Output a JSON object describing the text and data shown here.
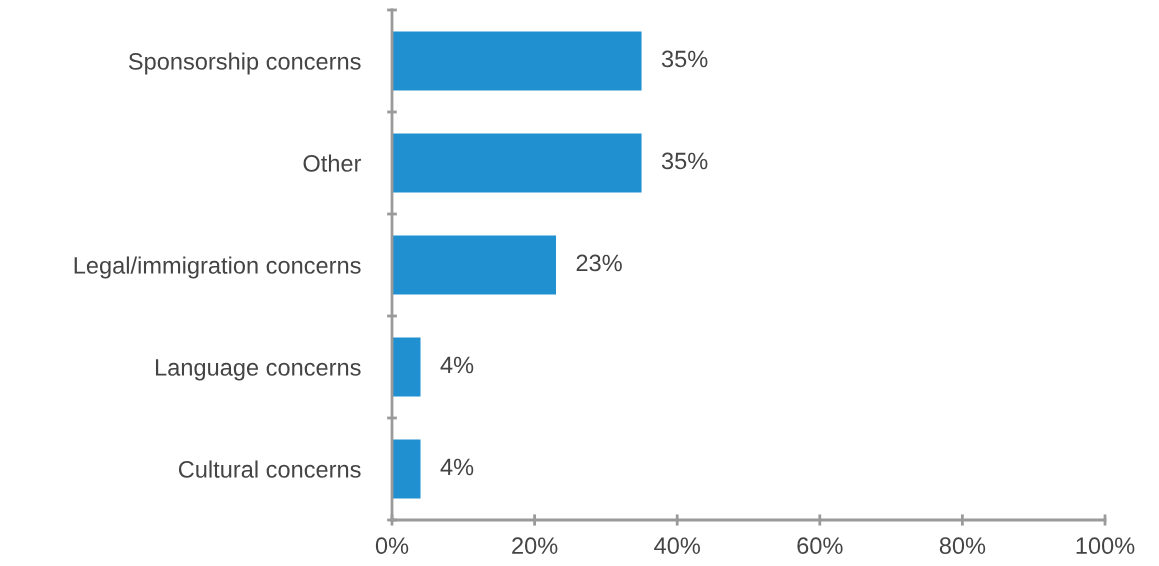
{
  "chart_data": {
    "type": "bar",
    "orientation": "horizontal",
    "categories": [
      "Sponsorship concerns",
      "Other",
      "Legal/immigration concerns",
      "Language concerns",
      "Cultural concerns"
    ],
    "values": [
      35,
      35,
      23,
      4,
      4
    ],
    "value_labels": [
      "35%",
      "35%",
      "23%",
      "4%",
      "4%"
    ],
    "color": "#2190d0",
    "xlim": [
      0,
      100
    ],
    "xticks": [
      {
        "value": 0,
        "label": "0%"
      },
      {
        "value": 20,
        "label": "20%"
      },
      {
        "value": 40,
        "label": "40%"
      },
      {
        "value": 60,
        "label": "60%"
      },
      {
        "value": 80,
        "label": "80%"
      },
      {
        "value": 100,
        "label": "100%"
      }
    ],
    "grid": false,
    "legend": false
  }
}
